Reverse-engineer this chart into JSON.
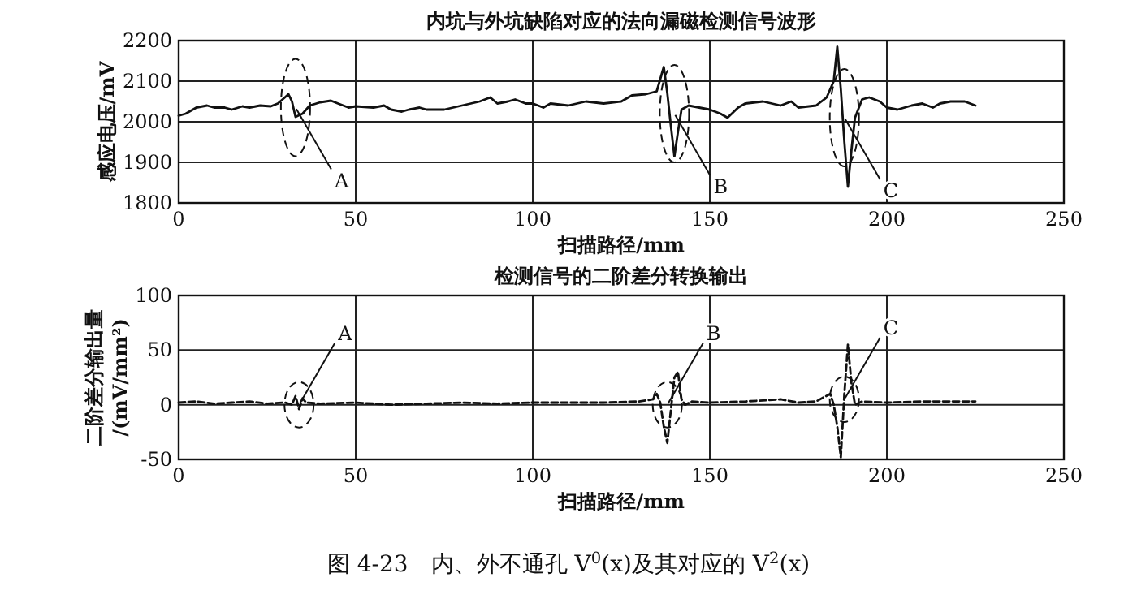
{
  "chart_data": [
    {
      "type": "line",
      "title": "内坑与外坑缺陷对应的法向漏磁检测信号波形",
      "xlabel": "扫描路径/mm",
      "ylabel": "感应电压/mV",
      "xlim": [
        0,
        250
      ],
      "xticks": [
        0,
        50,
        100,
        150,
        200,
        250
      ],
      "ylim": [
        1800,
        2200
      ],
      "yticks": [
        1800,
        1900,
        2000,
        2100,
        2200
      ],
      "grid": true,
      "series": [
        {
          "color": "#111111",
          "x": [
            0,
            2,
            5,
            8,
            10,
            13,
            15,
            18,
            20,
            23,
            26,
            28,
            30,
            31,
            32,
            33,
            35,
            37,
            40,
            43,
            45,
            48,
            50,
            55,
            58,
            60,
            63,
            65,
            68,
            70,
            75,
            80,
            85,
            88,
            90,
            93,
            95,
            98,
            100,
            103,
            105,
            110,
            115,
            120,
            125,
            128,
            132,
            135,
            137,
            138,
            139,
            140,
            141,
            142,
            144,
            147,
            150,
            153,
            155,
            158,
            160,
            165,
            170,
            173,
            175,
            180,
            183,
            185,
            186,
            187,
            188,
            189,
            190,
            191,
            193,
            195,
            198,
            200,
            203,
            207,
            210,
            213,
            215,
            218,
            222,
            225
          ],
          "values": [
            2015,
            2020,
            2035,
            2040,
            2035,
            2035,
            2030,
            2038,
            2035,
            2040,
            2038,
            2045,
            2060,
            2068,
            2050,
            2012,
            2020,
            2040,
            2048,
            2052,
            2045,
            2035,
            2038,
            2035,
            2040,
            2030,
            2025,
            2030,
            2035,
            2030,
            2030,
            2040,
            2050,
            2060,
            2045,
            2050,
            2055,
            2045,
            2045,
            2035,
            2045,
            2040,
            2050,
            2045,
            2050,
            2065,
            2068,
            2075,
            2135,
            2070,
            1990,
            1915,
            1975,
            2030,
            2040,
            2035,
            2030,
            2020,
            2010,
            2035,
            2045,
            2050,
            2040,
            2050,
            2035,
            2040,
            2060,
            2100,
            2185,
            2080,
            1950,
            1840,
            1930,
            2010,
            2055,
            2060,
            2050,
            2035,
            2030,
            2040,
            2045,
            2035,
            2045,
            2050,
            2050,
            2040
          ]
        }
      ],
      "annotations": [
        {
          "text": "A",
          "x": 33,
          "y": 2035
        },
        {
          "text": "B",
          "x": 140,
          "y": 2020
        },
        {
          "text": "C",
          "x": 188,
          "y": 2010
        }
      ]
    },
    {
      "type": "line",
      "title": "检测信号的二阶差分转换输出",
      "xlabel": "扫描路径/mm",
      "ylabel": "二阶差分输出量/(mV/mm²)",
      "xlim": [
        0,
        250
      ],
      "xticks": [
        0,
        50,
        100,
        150,
        200,
        250
      ],
      "ylim": [
        -50,
        100
      ],
      "yticks": [
        -50,
        0,
        50,
        100
      ],
      "grid": true,
      "series": [
        {
          "color": "#111111",
          "line_style": "dashed",
          "x": [
            0,
            5,
            10,
            15,
            20,
            25,
            30,
            32,
            33,
            34,
            35,
            36,
            40,
            50,
            60,
            70,
            80,
            90,
            100,
            110,
            120,
            130,
            134,
            135,
            136,
            137,
            138,
            139,
            140,
            141,
            142,
            143,
            145,
            150,
            160,
            170,
            175,
            180,
            184,
            185,
            186,
            187,
            188,
            189,
            190,
            191,
            193,
            200,
            210,
            220,
            225
          ],
          "values": [
            2,
            3,
            1,
            2,
            3,
            1,
            2,
            0,
            8,
            -4,
            6,
            2,
            1,
            2,
            0,
            1,
            2,
            1,
            2,
            2,
            2,
            3,
            5,
            10,
            2,
            -20,
            -35,
            -5,
            25,
            30,
            5,
            0,
            3,
            2,
            3,
            5,
            2,
            3,
            10,
            0,
            -20,
            -48,
            10,
            55,
            20,
            0,
            3,
            2,
            3,
            3,
            3
          ]
        }
      ],
      "annotations": [
        {
          "text": "A",
          "x": 34,
          "y": 0
        },
        {
          "text": "B",
          "x": 138,
          "y": 0
        },
        {
          "text": "C",
          "x": 188,
          "y": 5
        },
        "图 4-23　内、外不通孔 V$^{0}$(x)及其对应的 V$^{2}$(x)"
      ]
    }
  ]
}
